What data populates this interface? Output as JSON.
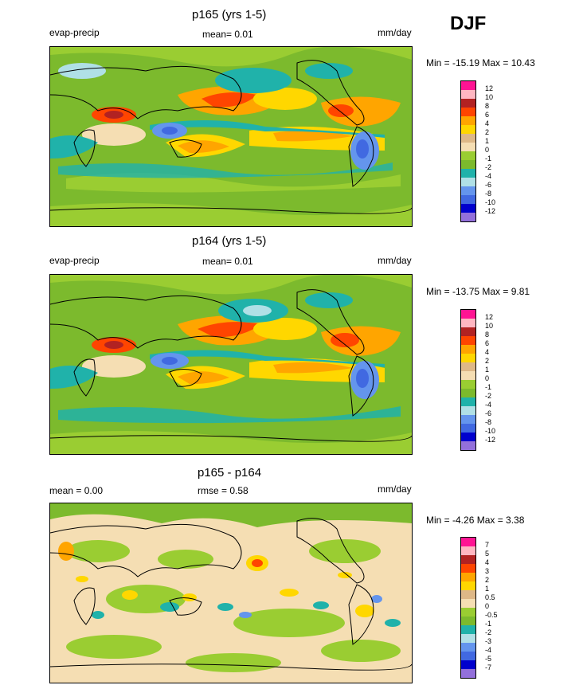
{
  "season": "DJF",
  "panels": [
    {
      "title": "p165 (yrs 1-5)",
      "left_label": "evap-precip",
      "mid_label": "mean=   0.01",
      "units": "mm/day",
      "minmax": "Min = -15.19 Max =  10.43",
      "legend": {
        "labels": [
          "12",
          "10",
          "8",
          "6",
          "4",
          "2",
          "1",
          "0",
          "-1",
          "-2",
          "-4",
          "-6",
          "-8",
          "-10",
          "-12"
        ],
        "colors": [
          "#ff1493",
          "#ffb6c1",
          "#b22222",
          "#ff4500",
          "#ffa500",
          "#ffd700",
          "#deb887",
          "#f5deb3",
          "#9acd32",
          "#7cba2d",
          "#20b2aa",
          "#b0e0e6",
          "#6495ed",
          "#4169e1",
          "#0000cd",
          "#9370db"
        ]
      }
    },
    {
      "title": "p164 (yrs 1-5)",
      "left_label": "evap-precip",
      "mid_label": "mean=   0.01",
      "units": "mm/day",
      "minmax": "Min = -13.75 Max =   9.81",
      "legend": {
        "labels": [
          "12",
          "10",
          "8",
          "6",
          "4",
          "2",
          "1",
          "0",
          "-1",
          "-2",
          "-4",
          "-6",
          "-8",
          "-10",
          "-12"
        ],
        "colors": [
          "#ff1493",
          "#ffb6c1",
          "#b22222",
          "#ff4500",
          "#ffa500",
          "#ffd700",
          "#deb887",
          "#f5deb3",
          "#9acd32",
          "#7cba2d",
          "#20b2aa",
          "#b0e0e6",
          "#6495ed",
          "#4169e1",
          "#0000cd",
          "#9370db"
        ]
      }
    },
    {
      "title": "p165 - p164",
      "left_label": "mean =   0.00",
      "mid_label": "rmse =   0.58",
      "units": "mm/day",
      "minmax": "Min =  -4.26 Max =   3.38",
      "legend": {
        "labels": [
          "7",
          "5",
          "4",
          "3",
          "2",
          "1",
          "0.5",
          "0",
          "-0.5",
          "-1",
          "-2",
          "-3",
          "-4",
          "-5",
          "-7"
        ],
        "colors": [
          "#ff1493",
          "#ffb6c1",
          "#b22222",
          "#ff4500",
          "#ffa500",
          "#ffd700",
          "#deb887",
          "#f5deb3",
          "#9acd32",
          "#7cba2d",
          "#20b2aa",
          "#b0e0e6",
          "#6495ed",
          "#4169e1",
          "#0000cd",
          "#9370db"
        ]
      }
    }
  ],
  "chart_data": [
    {
      "type": "heatmap",
      "title": "p165 (yrs 1-5)",
      "variable": "evap-precip",
      "units": "mm/day",
      "mean": 0.01,
      "min": -15.19,
      "max": 10.43,
      "contour_levels": [
        -12,
        -10,
        -8,
        -6,
        -4,
        -2,
        -1,
        0,
        1,
        2,
        4,
        6,
        8,
        10,
        12
      ]
    },
    {
      "type": "heatmap",
      "title": "p164 (yrs 1-5)",
      "variable": "evap-precip",
      "units": "mm/day",
      "mean": 0.01,
      "min": -13.75,
      "max": 9.81,
      "contour_levels": [
        -12,
        -10,
        -8,
        -6,
        -4,
        -2,
        -1,
        0,
        1,
        2,
        4,
        6,
        8,
        10,
        12
      ]
    },
    {
      "type": "heatmap",
      "title": "p165 - p164",
      "units": "mm/day",
      "mean": 0.0,
      "rmse": 0.58,
      "min": -4.26,
      "max": 3.38,
      "contour_levels": [
        -7,
        -5,
        -4,
        -3,
        -2,
        -1,
        -0.5,
        0,
        0.5,
        1,
        2,
        3,
        4,
        5,
        7
      ]
    }
  ]
}
